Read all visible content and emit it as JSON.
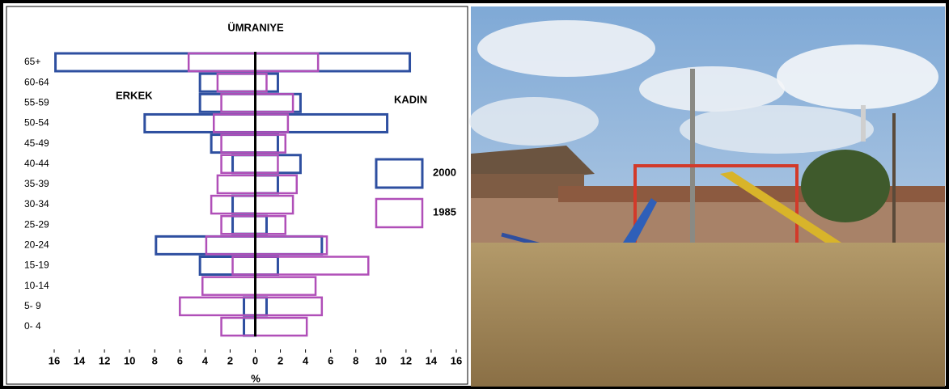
{
  "chart_data": {
    "type": "pyramid",
    "title": "ÜMRANIYE",
    "left_label": "ERKEK",
    "right_label": "KADIN",
    "x_label": "%",
    "categories": [
      "65+",
      "60-64",
      "55-59",
      "50-54",
      "45-49",
      "40-44",
      "35-39",
      "30-34",
      "25-29",
      "20-24",
      "15-19",
      "10-14",
      "5- 9",
      "0- 4"
    ],
    "series": [
      {
        "name": "2000",
        "color": "#2e4fa0",
        "male": [
          -15.9,
          -4.4,
          -4.4,
          -8.8,
          -3.5,
          -1.8,
          0,
          -1.8,
          -1.8,
          -7.9,
          -4.4,
          0,
          -0.9,
          -0.9
        ],
        "female": [
          12.3,
          1.8,
          3.6,
          10.5,
          1.8,
          3.6,
          1.8,
          0,
          0.9,
          5.3,
          1.8,
          0,
          0.9,
          0
        ]
      },
      {
        "name": "1985",
        "color": "#b04fb8",
        "male": [
          -5.3,
          -3.0,
          -2.7,
          -3.3,
          -2.7,
          -2.7,
          -3.0,
          -3.5,
          -2.7,
          -3.9,
          -1.8,
          -4.2,
          -6.0,
          -2.7
        ],
        "female": [
          5.0,
          0.9,
          3.0,
          2.6,
          2.4,
          1.8,
          3.3,
          3.0,
          2.4,
          5.7,
          9.0,
          4.8,
          5.3,
          4.1
        ]
      }
    ],
    "xlim": [
      -16,
      16
    ],
    "xticks": [
      {
        "value": -16,
        "label": "16"
      },
      {
        "value": -14,
        "label": "14"
      },
      {
        "value": -12,
        "label": "12"
      },
      {
        "value": -10,
        "label": "10"
      },
      {
        "value": -8,
        "label": "8"
      },
      {
        "value": -6,
        "label": "6"
      },
      {
        "value": -4,
        "label": "4"
      },
      {
        "value": -2,
        "label": "2"
      },
      0,
      2,
      4,
      6,
      8,
      10,
      12,
      14,
      16
    ],
    "grid": false
  }
}
